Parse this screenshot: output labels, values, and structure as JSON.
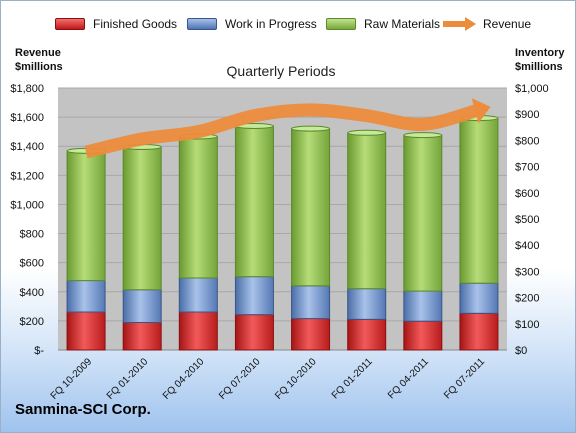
{
  "legend": {
    "finished": "Finished Goods",
    "wip": "Work in Progress",
    "raw": "Raw Materials",
    "revenue": "Revenue"
  },
  "left_axis_title": [
    "Revenue",
    "$millions"
  ],
  "right_axis_title": [
    "Inventory",
    "$millions"
  ],
  "company": "Sanmina-SCI Corp.",
  "colors": {
    "finished": "#d42a2a",
    "wip": "#6a8fcc",
    "raw": "#8fbf4d",
    "revenue": "#ec8c3c",
    "plot_bg": "#c3c3c3"
  },
  "chart_data": {
    "type": "bar",
    "title": "Quarterly Periods",
    "categories": [
      "FQ 10-2009",
      "FQ 01-2010",
      "FQ 04-2010",
      "FQ 07-2010",
      "FQ 10-2010",
      "FQ 01-2011",
      "FQ 04-2011",
      "FQ 07-2011"
    ],
    "stacked": true,
    "series": [
      {
        "name": "Finished Goods",
        "axis": "right",
        "values": [
          145,
          105,
          145,
          135,
          120,
          117,
          110,
          140
        ]
      },
      {
        "name": "Work in Progress",
        "axis": "right",
        "values": [
          120,
          125,
          130,
          145,
          125,
          117,
          115,
          115
        ]
      },
      {
        "name": "Raw Materials",
        "axis": "right",
        "values": [
          495,
          545,
          540,
          575,
          600,
          595,
          595,
          630
        ]
      },
      {
        "name": "Revenue",
        "axis": "left",
        "type": "line",
        "values": [
          1360,
          1450,
          1500,
          1610,
          1650,
          1610,
          1550,
          1650
        ]
      }
    ],
    "left_axis": {
      "ylim": [
        0,
        1800
      ],
      "ticks": [
        "$-",
        "$200",
        "$400",
        "$600",
        "$800",
        "$1,000",
        "$1,200",
        "$1,400",
        "$1,600",
        "$1,800"
      ]
    },
    "right_axis": {
      "ylim": [
        0,
        1000
      ],
      "ticks": [
        "$0",
        "$100",
        "$200",
        "$300",
        "$400",
        "$500",
        "$600",
        "$700",
        "$800",
        "$900",
        "$1,000"
      ]
    },
    "grid": true,
    "legend_position": "top"
  }
}
